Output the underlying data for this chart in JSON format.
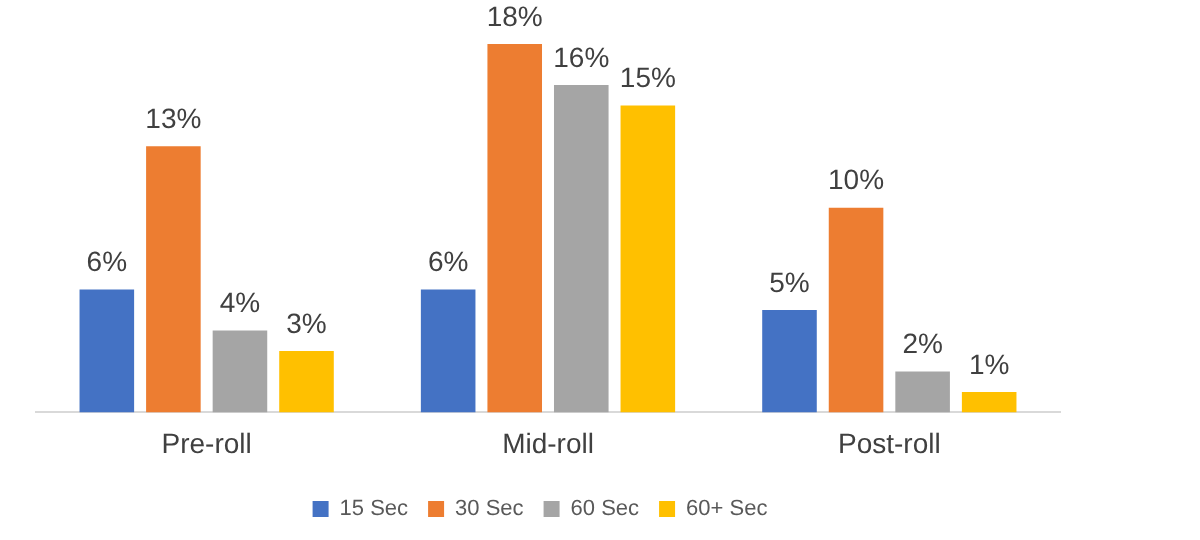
{
  "chart_data": {
    "type": "bar",
    "categories": [
      "Pre-roll",
      "Mid-roll",
      "Post-roll"
    ],
    "relative": false,
    "series": [
      {
        "name": "15 Sec",
        "color": "#4472c4",
        "values": [
          6,
          6,
          5
        ],
        "value_labels": [
          "6%",
          "6%",
          "5%"
        ]
      },
      {
        "name": "30 Sec",
        "color": "#ed7d31",
        "values": [
          13,
          18,
          10
        ],
        "value_labels": [
          "13%",
          "18%",
          "10%"
        ]
      },
      {
        "name": "60 Sec",
        "color": "#a5a5a5",
        "values": [
          4,
          16,
          2
        ],
        "value_labels": [
          "4%",
          "16%",
          "2%"
        ]
      },
      {
        "name": "60+ Sec",
        "color": "#ffc000",
        "values": [
          3,
          15,
          1
        ],
        "value_labels": [
          "3%",
          "15%",
          "1%"
        ]
      }
    ],
    "legend": "bottom",
    "grid": false
  }
}
